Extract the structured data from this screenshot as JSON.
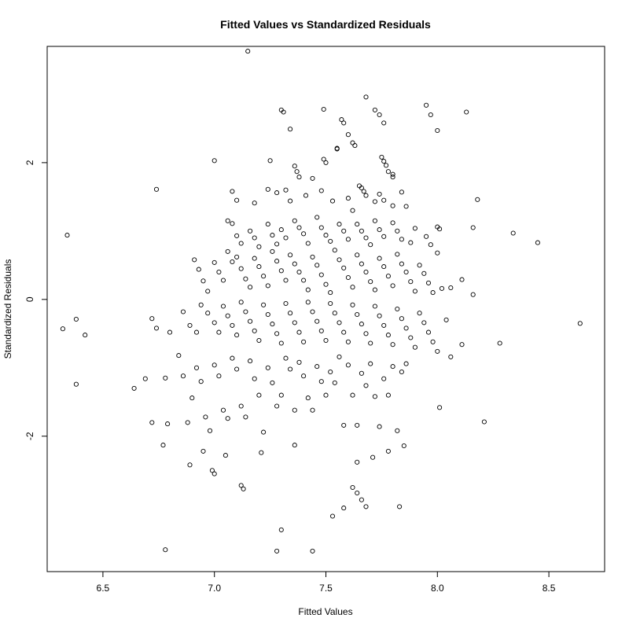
{
  "chart_data": {
    "type": "scatter",
    "title": "Fitted Values vs Standardized Residuals",
    "xlabel": "Fitted Values",
    "ylabel": "Standardized Residuals",
    "xlim": [
      6.25,
      8.75
    ],
    "ylim": [
      -3.98,
      3.7
    ],
    "xticks": [
      6.5,
      7.0,
      7.5,
      8.0,
      8.5
    ],
    "xtick_labels": [
      "6.5",
      "7.0",
      "7.5",
      "8.0",
      "8.5"
    ],
    "yticks": [
      -2,
      0,
      2
    ],
    "ytick_labels": [
      "-2",
      "0",
      "2"
    ],
    "grid": false,
    "marker": "open-circle",
    "marker_color": "#000000",
    "points": [
      [
        7.15,
        3.63
      ],
      [
        7.68,
        2.96
      ],
      [
        7.3,
        2.77
      ],
      [
        7.31,
        2.74
      ],
      [
        7.49,
        2.78
      ],
      [
        7.72,
        2.77
      ],
      [
        7.74,
        2.7
      ],
      [
        7.76,
        2.58
      ],
      [
        7.6,
        2.41
      ],
      [
        7.62,
        2.29
      ],
      [
        7.63,
        2.25
      ],
      [
        7.57,
        2.63
      ],
      [
        7.58,
        2.58
      ],
      [
        7.34,
        2.49
      ],
      [
        7.0,
        2.03
      ],
      [
        7.25,
        2.03
      ],
      [
        7.49,
        2.05
      ],
      [
        7.5,
        2.0
      ],
      [
        7.55,
        2.2
      ],
      [
        7.55,
        2.21
      ],
      [
        7.36,
        1.95
      ],
      [
        7.37,
        1.87
      ],
      [
        7.38,
        1.79
      ],
      [
        7.44,
        1.77
      ],
      [
        7.75,
        2.08
      ],
      [
        7.76,
        2.02
      ],
      [
        7.77,
        1.96
      ],
      [
        7.78,
        1.87
      ],
      [
        7.8,
        1.83
      ],
      [
        7.8,
        1.79
      ],
      [
        7.95,
        2.84
      ],
      [
        7.97,
        2.7
      ],
      [
        8.0,
        2.47
      ],
      [
        8.13,
        2.74
      ],
      [
        6.74,
        1.61
      ],
      [
        7.08,
        1.58
      ],
      [
        7.1,
        1.45
      ],
      [
        7.18,
        1.41
      ],
      [
        7.24,
        1.61
      ],
      [
        7.28,
        1.56
      ],
      [
        7.32,
        1.6
      ],
      [
        7.34,
        1.44
      ],
      [
        7.41,
        1.52
      ],
      [
        7.48,
        1.59
      ],
      [
        7.53,
        1.44
      ],
      [
        7.6,
        1.48
      ],
      [
        7.65,
        1.66
      ],
      [
        7.66,
        1.63
      ],
      [
        7.67,
        1.58
      ],
      [
        7.68,
        1.52
      ],
      [
        7.72,
        1.43
      ],
      [
        7.74,
        1.54
      ],
      [
        7.76,
        1.45
      ],
      [
        7.8,
        1.37
      ],
      [
        7.84,
        1.57
      ],
      [
        7.86,
        1.36
      ],
      [
        8.18,
        1.46
      ],
      [
        8.0,
        1.06
      ],
      [
        8.01,
        1.03
      ],
      [
        8.16,
        1.05
      ],
      [
        8.34,
        0.97
      ],
      [
        8.45,
        0.83
      ],
      [
        6.34,
        0.94
      ],
      [
        7.06,
        1.15
      ],
      [
        7.08,
        1.11
      ],
      [
        7.1,
        0.93
      ],
      [
        7.12,
        0.82
      ],
      [
        7.16,
        1.0
      ],
      [
        7.18,
        0.9
      ],
      [
        7.2,
        0.77
      ],
      [
        7.24,
        1.1
      ],
      [
        7.26,
        0.94
      ],
      [
        7.28,
        0.81
      ],
      [
        7.3,
        1.02
      ],
      [
        7.32,
        0.9
      ],
      [
        7.36,
        1.15
      ],
      [
        7.38,
        1.05
      ],
      [
        7.4,
        0.96
      ],
      [
        7.42,
        0.82
      ],
      [
        7.46,
        1.2
      ],
      [
        7.48,
        1.05
      ],
      [
        7.5,
        0.94
      ],
      [
        7.52,
        0.85
      ],
      [
        7.56,
        1.1
      ],
      [
        7.58,
        1.0
      ],
      [
        7.6,
        0.88
      ],
      [
        7.62,
        1.3
      ],
      [
        7.64,
        1.1
      ],
      [
        7.66,
        1.0
      ],
      [
        7.68,
        0.9
      ],
      [
        7.7,
        0.8
      ],
      [
        7.72,
        1.15
      ],
      [
        7.74,
        1.02
      ],
      [
        7.76,
        0.92
      ],
      [
        7.8,
        1.12
      ],
      [
        7.82,
        1.0
      ],
      [
        7.84,
        0.88
      ],
      [
        7.88,
        0.83
      ],
      [
        7.9,
        1.04
      ],
      [
        7.95,
        0.92
      ],
      [
        7.97,
        0.8
      ],
      [
        8.0,
        0.68
      ],
      [
        6.91,
        0.58
      ],
      [
        6.93,
        0.44
      ],
      [
        6.95,
        0.27
      ],
      [
        6.97,
        0.12
      ],
      [
        7.0,
        0.54
      ],
      [
        7.02,
        0.4
      ],
      [
        7.04,
        0.28
      ],
      [
        7.06,
        0.7
      ],
      [
        7.08,
        0.55
      ],
      [
        7.1,
        0.62
      ],
      [
        7.12,
        0.45
      ],
      [
        7.14,
        0.3
      ],
      [
        7.16,
        0.18
      ],
      [
        7.18,
        0.6
      ],
      [
        7.2,
        0.48
      ],
      [
        7.22,
        0.34
      ],
      [
        7.24,
        0.2
      ],
      [
        7.26,
        0.7
      ],
      [
        7.28,
        0.56
      ],
      [
        7.3,
        0.42
      ],
      [
        7.32,
        0.28
      ],
      [
        7.34,
        0.65
      ],
      [
        7.36,
        0.52
      ],
      [
        7.38,
        0.4
      ],
      [
        7.4,
        0.28
      ],
      [
        7.42,
        0.14
      ],
      [
        7.44,
        0.62
      ],
      [
        7.46,
        0.5
      ],
      [
        7.48,
        0.36
      ],
      [
        7.5,
        0.22
      ],
      [
        7.52,
        0.1
      ],
      [
        7.54,
        0.72
      ],
      [
        7.56,
        0.58
      ],
      [
        7.58,
        0.46
      ],
      [
        7.6,
        0.32
      ],
      [
        7.62,
        0.18
      ],
      [
        7.64,
        0.65
      ],
      [
        7.66,
        0.52
      ],
      [
        7.68,
        0.4
      ],
      [
        7.7,
        0.26
      ],
      [
        7.72,
        0.14
      ],
      [
        7.74,
        0.6
      ],
      [
        7.76,
        0.48
      ],
      [
        7.78,
        0.34
      ],
      [
        7.8,
        0.2
      ],
      [
        7.82,
        0.66
      ],
      [
        7.84,
        0.52
      ],
      [
        7.86,
        0.4
      ],
      [
        7.88,
        0.26
      ],
      [
        7.9,
        0.12
      ],
      [
        7.92,
        0.5
      ],
      [
        7.94,
        0.38
      ],
      [
        7.96,
        0.24
      ],
      [
        7.98,
        0.1
      ],
      [
        8.02,
        0.16
      ],
      [
        8.06,
        0.17
      ],
      [
        8.11,
        0.29
      ],
      [
        8.16,
        0.07
      ],
      [
        6.86,
        -0.18
      ],
      [
        6.89,
        -0.38
      ],
      [
        6.92,
        -0.48
      ],
      [
        6.94,
        -0.08
      ],
      [
        6.97,
        -0.2
      ],
      [
        7.0,
        -0.34
      ],
      [
        7.02,
        -0.48
      ],
      [
        7.04,
        -0.1
      ],
      [
        7.06,
        -0.24
      ],
      [
        7.08,
        -0.38
      ],
      [
        7.1,
        -0.52
      ],
      [
        7.12,
        -0.04
      ],
      [
        7.14,
        -0.18
      ],
      [
        7.16,
        -0.32
      ],
      [
        7.18,
        -0.46
      ],
      [
        7.2,
        -0.6
      ],
      [
        7.22,
        -0.08
      ],
      [
        7.24,
        -0.22
      ],
      [
        7.26,
        -0.36
      ],
      [
        7.28,
        -0.5
      ],
      [
        7.3,
        -0.64
      ],
      [
        7.32,
        -0.06
      ],
      [
        7.34,
        -0.2
      ],
      [
        7.36,
        -0.34
      ],
      [
        7.38,
        -0.48
      ],
      [
        7.4,
        -0.62
      ],
      [
        7.42,
        -0.04
      ],
      [
        7.44,
        -0.18
      ],
      [
        7.46,
        -0.32
      ],
      [
        7.48,
        -0.46
      ],
      [
        7.5,
        -0.6
      ],
      [
        7.52,
        -0.06
      ],
      [
        7.54,
        -0.2
      ],
      [
        7.56,
        -0.34
      ],
      [
        7.58,
        -0.48
      ],
      [
        7.6,
        -0.62
      ],
      [
        7.62,
        -0.08
      ],
      [
        7.64,
        -0.22
      ],
      [
        7.66,
        -0.36
      ],
      [
        7.68,
        -0.5
      ],
      [
        7.7,
        -0.64
      ],
      [
        7.72,
        -0.1
      ],
      [
        7.74,
        -0.24
      ],
      [
        7.76,
        -0.38
      ],
      [
        7.78,
        -0.52
      ],
      [
        7.8,
        -0.66
      ],
      [
        7.82,
        -0.14
      ],
      [
        7.84,
        -0.28
      ],
      [
        7.86,
        -0.42
      ],
      [
        7.88,
        -0.56
      ],
      [
        7.9,
        -0.7
      ],
      [
        7.92,
        -0.2
      ],
      [
        7.94,
        -0.34
      ],
      [
        7.96,
        -0.48
      ],
      [
        7.98,
        -0.62
      ],
      [
        8.0,
        -0.76
      ],
      [
        8.04,
        -0.3
      ],
      [
        8.06,
        -0.84
      ],
      [
        8.11,
        -0.66
      ],
      [
        8.28,
        -0.64
      ],
      [
        8.64,
        -0.35
      ],
      [
        6.32,
        -0.43
      ],
      [
        6.38,
        -0.29
      ],
      [
        6.42,
        -0.52
      ],
      [
        6.72,
        -0.28
      ],
      [
        6.74,
        -0.42
      ],
      [
        6.8,
        -0.48
      ],
      [
        6.38,
        -1.24
      ],
      [
        6.64,
        -1.3
      ],
      [
        6.69,
        -1.16
      ],
      [
        6.72,
        -1.8
      ],
      [
        6.78,
        -1.15
      ],
      [
        6.79,
        -1.82
      ],
      [
        6.84,
        -0.82
      ],
      [
        6.86,
        -1.12
      ],
      [
        6.88,
        -1.8
      ],
      [
        6.9,
        -1.44
      ],
      [
        6.92,
        -1.0
      ],
      [
        6.94,
        -1.2
      ],
      [
        6.96,
        -1.72
      ],
      [
        6.98,
        -1.92
      ],
      [
        7.0,
        -0.96
      ],
      [
        7.02,
        -1.12
      ],
      [
        7.04,
        -1.62
      ],
      [
        7.06,
        -1.74
      ],
      [
        7.08,
        -0.86
      ],
      [
        7.1,
        -1.02
      ],
      [
        7.12,
        -1.56
      ],
      [
        7.14,
        -1.72
      ],
      [
        7.16,
        -0.9
      ],
      [
        7.18,
        -1.16
      ],
      [
        7.2,
        -1.4
      ],
      [
        7.22,
        -1.94
      ],
      [
        7.24,
        -1.0
      ],
      [
        7.26,
        -1.22
      ],
      [
        7.28,
        -1.56
      ],
      [
        7.3,
        -1.4
      ],
      [
        7.32,
        -0.86
      ],
      [
        7.34,
        -1.02
      ],
      [
        7.36,
        -1.62
      ],
      [
        7.38,
        -0.92
      ],
      [
        7.4,
        -1.12
      ],
      [
        7.42,
        -1.44
      ],
      [
        7.44,
        -1.62
      ],
      [
        7.46,
        -0.98
      ],
      [
        7.48,
        -1.2
      ],
      [
        7.5,
        -1.4
      ],
      [
        7.52,
        -1.06
      ],
      [
        7.54,
        -1.22
      ],
      [
        7.56,
        -0.84
      ],
      [
        7.58,
        -1.84
      ],
      [
        7.6,
        -0.96
      ],
      [
        7.62,
        -1.4
      ],
      [
        7.64,
        -1.84
      ],
      [
        7.66,
        -1.08
      ],
      [
        7.68,
        -1.26
      ],
      [
        7.7,
        -0.94
      ],
      [
        7.72,
        -1.42
      ],
      [
        7.74,
        -1.86
      ],
      [
        7.76,
        -1.16
      ],
      [
        7.78,
        -1.4
      ],
      [
        7.8,
        -0.98
      ],
      [
        7.82,
        -1.92
      ],
      [
        7.84,
        -1.06
      ],
      [
        7.86,
        -0.94
      ],
      [
        8.01,
        -1.58
      ],
      [
        8.21,
        -1.79
      ],
      [
        6.89,
        -2.42
      ],
      [
        6.95,
        -2.22
      ],
      [
        6.99,
        -2.5
      ],
      [
        7.0,
        -2.55
      ],
      [
        7.05,
        -2.28
      ],
      [
        7.12,
        -2.72
      ],
      [
        7.13,
        -2.77
      ],
      [
        7.21,
        -2.24
      ],
      [
        7.36,
        -2.13
      ],
      [
        7.64,
        -2.38
      ],
      [
        7.71,
        -2.31
      ],
      [
        7.78,
        -2.22
      ],
      [
        7.85,
        -2.14
      ],
      [
        6.77,
        -2.13
      ],
      [
        7.62,
        -2.75
      ],
      [
        7.64,
        -2.83
      ],
      [
        7.66,
        -2.93
      ],
      [
        7.58,
        -3.05
      ],
      [
        7.53,
        -3.17
      ],
      [
        7.68,
        -3.03
      ],
      [
        7.83,
        -3.03
      ],
      [
        7.3,
        -3.37
      ],
      [
        7.28,
        -3.68
      ],
      [
        7.44,
        -3.68
      ],
      [
        6.78,
        -3.66
      ]
    ]
  }
}
